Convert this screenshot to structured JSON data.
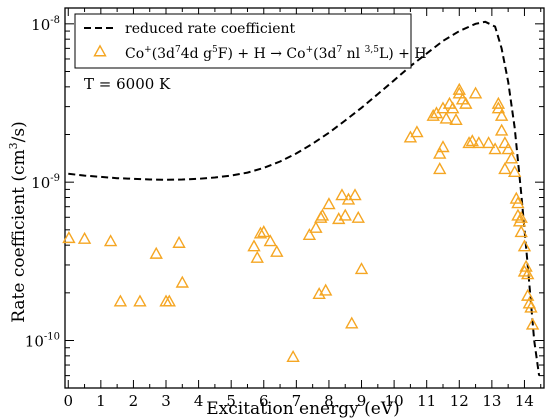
{
  "chart_data": {
    "type": "scatter",
    "title": "",
    "xlabel": "Excitation energy (eV)",
    "ylabel_parts": {
      "base": "Rate coefficient (cm",
      "sup": "3",
      "tail": "/s)"
    },
    "xlim": [
      -0.1,
      14.6
    ],
    "ylim_log10": [
      -10.3,
      -7.9
    ],
    "yscale": "log",
    "x_ticks": [
      0,
      1,
      2,
      3,
      4,
      5,
      6,
      7,
      8,
      9,
      10,
      11,
      12,
      13,
      14
    ],
    "x_tick_labels": [
      "0",
      "1",
      "2",
      "3",
      "4",
      "5",
      "6",
      "7",
      "8",
      "9",
      "10",
      "11",
      "12",
      "13",
      "14"
    ],
    "y_major_ticks": [
      1e-10,
      1e-09,
      1e-08
    ],
    "y_tick_labels": [
      {
        "base": "10",
        "exp": "-10"
      },
      {
        "base": "10",
        "exp": "-9"
      },
      {
        "base": "10",
        "exp": "-8"
      }
    ],
    "annotation": "T = 6000 K",
    "legend": {
      "placement": "top-left",
      "entries": [
        {
          "id": "reduced",
          "label": "reduced rate coefficient",
          "style": "dashed-line",
          "color": "#000000"
        },
        {
          "id": "co",
          "style": "open-triangle",
          "color": "#f5a623",
          "label_parts": [
            {
              "t": "Co"
            },
            {
              "t": "+",
              "sup": true
            },
            {
              "t": "(3d"
            },
            {
              "t": "7",
              "sup": true
            },
            {
              "t": "4d g"
            },
            {
              "t": "5",
              "sup": true
            },
            {
              "t": "F) + H  → Co"
            },
            {
              "t": "+",
              "sup": true
            },
            {
              "t": "(3d"
            },
            {
              "t": "7",
              "sup": true
            },
            {
              "t": " nl "
            },
            {
              "t": "3,5",
              "sup": true
            },
            {
              "t": "L) + H"
            }
          ]
        }
      ]
    },
    "series": [
      {
        "name": "reduced rate coefficient",
        "style": "dashed",
        "color": "#000000",
        "x": [
          0,
          0.5,
          1,
          1.5,
          2,
          2.5,
          3,
          3.5,
          4,
          4.5,
          5,
          5.5,
          6,
          6.5,
          7,
          7.5,
          8,
          8.5,
          9,
          9.5,
          10,
          10.5,
          11,
          11.5,
          12,
          12.5,
          12.8,
          13.1,
          13.3,
          13.5,
          13.7,
          13.9,
          14.1,
          14.3,
          14.45
        ],
        "y": [
          1.13e-09,
          1.1e-09,
          1.08e-09,
          1.06e-09,
          1.05e-09,
          1.04e-09,
          1.035e-09,
          1.04e-09,
          1.05e-09,
          1.07e-09,
          1.1e-09,
          1.15e-09,
          1.23e-09,
          1.35e-09,
          1.52e-09,
          1.75e-09,
          2.05e-09,
          2.45e-09,
          2.95e-09,
          3.6e-09,
          4.4e-09,
          5.4e-09,
          6.5e-09,
          7.8e-09,
          9e-09,
          1e-08,
          1.03e-08,
          9.6e-09,
          7e-09,
          4.3e-09,
          2.2e-09,
          8.5e-10,
          3e-10,
          1e-10,
          6e-11
        ]
      },
      {
        "name": "Co+ (3d7 4d g5F) + H",
        "style": "open-triangle",
        "color": "#f5a623",
        "x": [
          0.02,
          0.5,
          1.3,
          1.6,
          2.2,
          2.7,
          3.0,
          3.1,
          3.4,
          3.5,
          5.7,
          5.8,
          5.9,
          6.0,
          6.2,
          6.4,
          6.9,
          7.4,
          7.6,
          7.7,
          7.75,
          7.8,
          7.9,
          8.0,
          8.3,
          8.4,
          8.5,
          8.6,
          8.7,
          8.8,
          8.9,
          9.0,
          10.5,
          10.7,
          11.2,
          11.3,
          11.4,
          11.4,
          11.5,
          11.5,
          11.6,
          11.7,
          11.8,
          11.9,
          12.0,
          12.0,
          12.1,
          12.2,
          12.3,
          12.4,
          12.5,
          12.6,
          12.9,
          13.1,
          13.2,
          13.2,
          13.3,
          13.3,
          13.4,
          13.4,
          13.5,
          13.6,
          13.7,
          13.75,
          13.8,
          13.8,
          13.85,
          13.9,
          13.9,
          14.0,
          14.0,
          14.05,
          14.1,
          14.1,
          14.15,
          14.2,
          14.25
        ],
        "y": [
          4.4e-10,
          4.35e-10,
          4.2e-10,
          1.75e-10,
          1.75e-10,
          3.5e-10,
          1.75e-10,
          1.75e-10,
          4.1e-10,
          2.3e-10,
          3.9e-10,
          3.3e-10,
          4.7e-10,
          4.8e-10,
          4.2e-10,
          3.6e-10,
          7.8e-11,
          4.6e-10,
          5.1e-10,
          1.95e-10,
          5.9e-10,
          6.1e-10,
          2.05e-10,
          7.2e-10,
          5.8e-10,
          8.2e-10,
          6.1e-10,
          7.7e-10,
          1.27e-10,
          8.2e-10,
          5.9e-10,
          2.8e-10,
          1.9e-09,
          2.05e-09,
          2.6e-09,
          2.7e-09,
          1.2e-09,
          1.5e-09,
          1.65e-09,
          2.9e-09,
          2.5e-09,
          3.1e-09,
          2.9e-09,
          2.45e-09,
          3.6e-09,
          3.8e-09,
          3.3e-09,
          3.1e-09,
          1.75e-09,
          1.8e-09,
          3.6e-09,
          1.75e-09,
          1.75e-09,
          1.6e-09,
          2.9e-09,
          3.1e-09,
          2.6e-09,
          2.1e-09,
          1.75e-09,
          1.2e-09,
          1.6e-09,
          1.4e-09,
          1.15e-09,
          7.8e-10,
          7.3e-10,
          6.1e-10,
          5.6e-10,
          5.9e-10,
          4.8e-10,
          3.9e-10,
          2.7e-10,
          2.9e-10,
          2.6e-10,
          1.9e-10,
          1.7e-10,
          1.6e-10,
          1.25e-10
        ]
      }
    ],
    "colors": {
      "triangles": "#f5a623",
      "curve": "#000000",
      "axes": "#000000",
      "background": "#ffffff"
    }
  }
}
